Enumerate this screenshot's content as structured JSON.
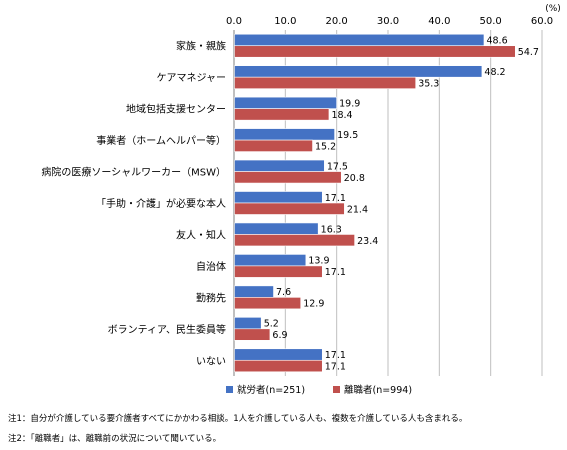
{
  "chart_data": {
    "type": "bar",
    "orientation": "horizontal",
    "unit": "(%)",
    "categories": [
      "家族・親族",
      "ケアマネジャー",
      "地域包括支援センター",
      "事業者（ホームヘルパー等）",
      "病院の医療ソーシャルワーカー（MSW）",
      "「手助・介護」が必要な本人",
      "友人・知人",
      "自治体",
      "勤務先",
      "ボランティア、民生委員等",
      "いない"
    ],
    "series": [
      {
        "name": "就労者(n=251)",
        "color": "#4472c4",
        "values": [
          48.6,
          48.2,
          19.9,
          19.5,
          17.5,
          17.1,
          16.3,
          13.9,
          7.6,
          5.2,
          17.1
        ],
        "labels": [
          "48.6",
          "48.2",
          "19.9",
          "19.5",
          "17.5",
          "17.1",
          "16.3",
          "13.9",
          "7.6",
          "5.2",
          "17.1"
        ]
      },
      {
        "name": "離職者(n=994)",
        "color": "#c0504d",
        "values": [
          54.7,
          35.3,
          18.4,
          15.2,
          20.8,
          21.4,
          23.4,
          17.1,
          12.9,
          6.9,
          17.1
        ],
        "labels": [
          "54.7",
          "35.3",
          "18.4",
          "15.2",
          "20.8",
          "21.4",
          "23.4",
          "17.1",
          "12.9",
          "6.9",
          "17.1"
        ]
      }
    ],
    "xlim": [
      0,
      60
    ],
    "ticks": [
      0,
      10,
      20,
      30,
      40,
      50,
      60
    ],
    "tick_labels": [
      "0.0",
      "10.0",
      "20.0",
      "30.0",
      "40.0",
      "50.0",
      "60.0"
    ],
    "axis_position": "top",
    "grid": true,
    "legend": "bottom"
  },
  "notes": [
    "注1：自分が介護している要介護者すべてにかかわる相談。1人を介護している人も、複数を介護している人も含まれる。",
    "注2：「離職者」は、離職前の状況について聞いている。"
  ]
}
